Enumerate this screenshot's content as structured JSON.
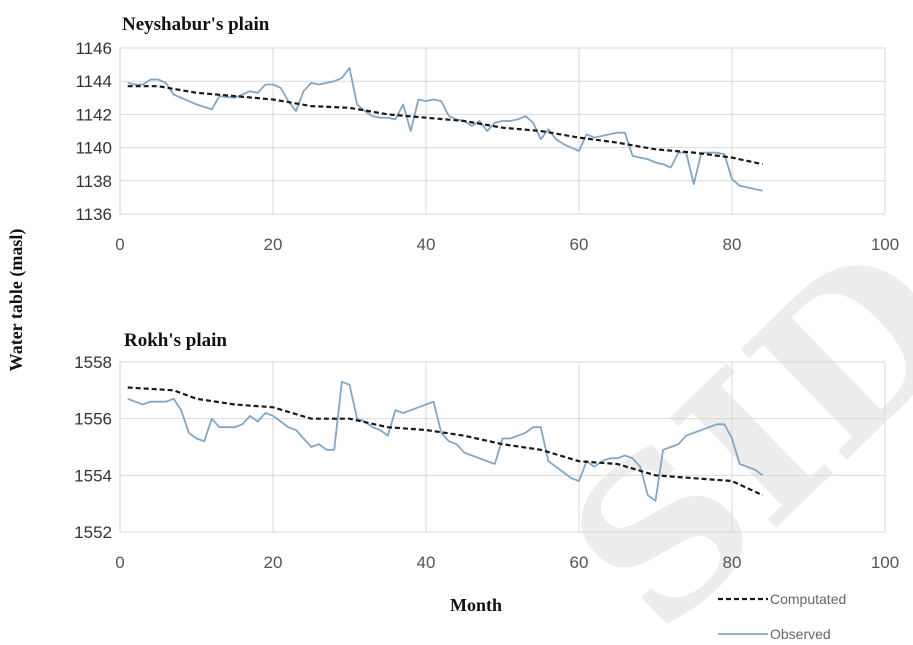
{
  "y_axis_title": "Water table (masl)",
  "x_axis_title": "Month",
  "legend": [
    {
      "label": "Computated",
      "style": "dashed",
      "color": "#1a1a1a"
    },
    {
      "label": "Observed",
      "style": "solid",
      "color": "#7fa7c9"
    }
  ],
  "watermark_text": "SID",
  "chart_data": [
    {
      "type": "line",
      "title": "Neyshabur's plain",
      "xlim": [
        0,
        100
      ],
      "ylim": [
        1136,
        1146
      ],
      "xticks": [
        0,
        20,
        40,
        60,
        80,
        100
      ],
      "yticks": [
        1136,
        1138,
        1140,
        1142,
        1144,
        1146
      ],
      "grid": true,
      "series": [
        {
          "name": "Observed",
          "x": [
            1,
            2,
            3,
            4,
            5,
            6,
            7,
            8,
            10,
            12,
            13,
            15,
            17,
            18,
            19,
            20,
            21,
            22,
            23,
            24,
            25,
            26,
            28,
            29,
            30,
            31,
            32,
            33,
            34,
            35,
            36,
            37,
            38,
            39,
            40,
            41,
            42,
            43,
            44,
            45,
            46,
            47,
            48,
            49,
            50,
            51,
            52,
            53,
            54,
            55,
            56,
            57,
            58,
            59,
            60,
            61,
            62,
            63,
            64,
            65,
            66,
            67,
            68,
            69,
            70,
            71,
            72,
            73,
            74,
            75,
            76,
            77,
            78,
            79,
            80,
            81,
            82,
            83,
            84
          ],
          "y": [
            1143.9,
            1143.8,
            1143.8,
            1144.1,
            1144.1,
            1143.9,
            1143.2,
            1143.0,
            1142.6,
            1142.3,
            1143.1,
            1143.0,
            1143.4,
            1143.3,
            1143.8,
            1143.8,
            1143.6,
            1142.8,
            1142.2,
            1143.4,
            1143.9,
            1143.8,
            1144.0,
            1144.2,
            1144.8,
            1142.6,
            1142.2,
            1141.9,
            1141.8,
            1141.8,
            1141.7,
            1142.6,
            1141.0,
            1142.9,
            1142.8,
            1142.9,
            1142.8,
            1141.9,
            1141.7,
            1141.6,
            1141.3,
            1141.6,
            1141.0,
            1141.5,
            1141.6,
            1141.6,
            1141.7,
            1141.9,
            1141.5,
            1140.5,
            1141.1,
            1140.5,
            1140.2,
            1140.0,
            1139.8,
            1140.8,
            1140.6,
            1140.7,
            1140.8,
            1140.9,
            1140.9,
            1139.5,
            1139.4,
            1139.3,
            1139.1,
            1139.0,
            1138.8,
            1139.7,
            1139.7,
            1137.8,
            1139.7,
            1139.7,
            1139.7,
            1139.6,
            1138.1,
            1137.7,
            1137.6,
            1137.5,
            1137.4
          ]
        },
        {
          "name": "Computated",
          "x": [
            1,
            5,
            10,
            15,
            20,
            25,
            30,
            35,
            40,
            45,
            50,
            55,
            60,
            65,
            70,
            75,
            80,
            84
          ],
          "y": [
            1143.7,
            1143.7,
            1143.3,
            1143.1,
            1142.9,
            1142.5,
            1142.4,
            1142.0,
            1141.8,
            1141.6,
            1141.2,
            1141.0,
            1140.6,
            1140.3,
            1139.9,
            1139.7,
            1139.4,
            1139.0
          ]
        }
      ]
    },
    {
      "type": "line",
      "title": "Rokh's plain",
      "xlim": [
        0,
        100
      ],
      "ylim": [
        1552,
        1558
      ],
      "xticks": [
        0,
        20,
        40,
        60,
        80,
        100
      ],
      "yticks": [
        1552,
        1554,
        1556,
        1558
      ],
      "grid": true,
      "series": [
        {
          "name": "Observed",
          "x": [
            1,
            2,
            3,
            4,
            5,
            6,
            7,
            8,
            9,
            10,
            11,
            12,
            13,
            14,
            15,
            16,
            17,
            18,
            19,
            20,
            21,
            22,
            23,
            24,
            25,
            26,
            27,
            28,
            29,
            30,
            31,
            32,
            33,
            34,
            35,
            36,
            37,
            38,
            39,
            40,
            41,
            42,
            43,
            44,
            45,
            46,
            47,
            48,
            49,
            50,
            51,
            52,
            53,
            54,
            55,
            56,
            57,
            58,
            59,
            60,
            61,
            62,
            63,
            64,
            65,
            66,
            67,
            68,
            69,
            70,
            71,
            72,
            73,
            74,
            75,
            76,
            77,
            78,
            79,
            80,
            81,
            82,
            83,
            84
          ],
          "y": [
            1556.7,
            1556.6,
            1556.5,
            1556.6,
            1556.6,
            1556.6,
            1556.7,
            1556.3,
            1555.5,
            1555.3,
            1555.2,
            1556.0,
            1555.7,
            1555.7,
            1555.7,
            1555.8,
            1556.1,
            1555.9,
            1556.2,
            1556.1,
            1555.9,
            1555.7,
            1555.6,
            1555.3,
            1555.0,
            1555.1,
            1554.9,
            1554.9,
            1557.3,
            1557.2,
            1556.0,
            1555.9,
            1555.7,
            1555.6,
            1555.4,
            1556.3,
            1556.2,
            1556.3,
            1556.4,
            1556.5,
            1556.6,
            1555.5,
            1555.2,
            1555.1,
            1554.8,
            1554.7,
            1554.6,
            1554.5,
            1554.4,
            1555.3,
            1555.3,
            1555.4,
            1555.5,
            1555.7,
            1555.7,
            1554.5,
            1554.3,
            1554.1,
            1553.9,
            1553.8,
            1554.5,
            1554.3,
            1554.5,
            1554.6,
            1554.6,
            1554.7,
            1554.6,
            1554.3,
            1553.3,
            1553.1,
            1554.9,
            1555.0,
            1555.1,
            1555.4,
            1555.5,
            1555.6,
            1555.7,
            1555.8,
            1555.8,
            1555.3,
            1554.4,
            1554.3,
            1554.2,
            1554.0
          ]
        },
        {
          "name": "Computated",
          "x": [
            1,
            7,
            10,
            15,
            20,
            25,
            30,
            35,
            40,
            45,
            50,
            55,
            60,
            65,
            70,
            75,
            80,
            84
          ],
          "y": [
            1557.1,
            1557.0,
            1556.7,
            1556.5,
            1556.4,
            1556.0,
            1556.0,
            1555.7,
            1555.6,
            1555.4,
            1555.1,
            1554.9,
            1554.5,
            1554.4,
            1554.0,
            1553.9,
            1553.8,
            1553.3
          ]
        }
      ]
    }
  ]
}
